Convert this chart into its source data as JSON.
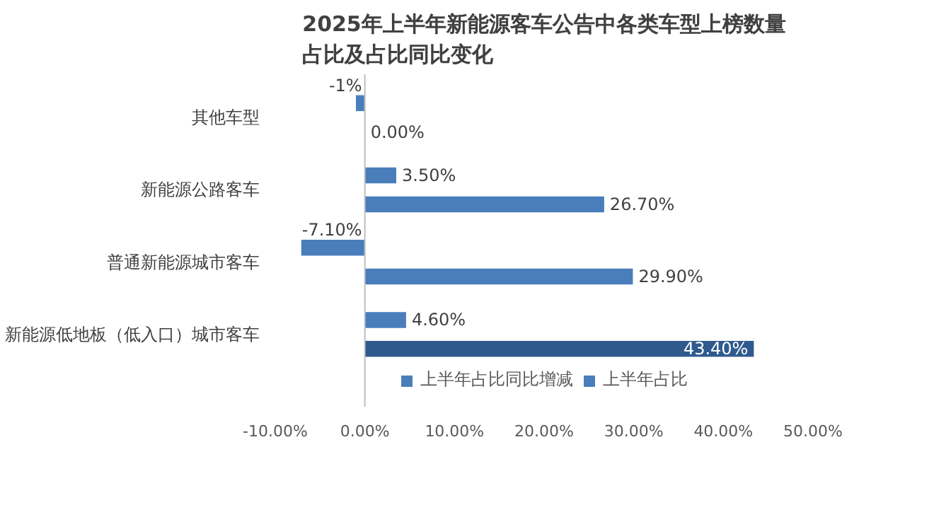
{
  "chart_data": {
    "type": "bar",
    "orientation": "horizontal",
    "title": "2025年上半年新能源客车公告中各类车型上榜数量占比及占比同比变化",
    "categories": [
      "其他车型",
      "新能源公路客车",
      "普通新能源城市客车",
      "新能源低地板（低入口）城市客车"
    ],
    "series": [
      {
        "name": "上半年占比同比增减",
        "color": "#4a7ebb",
        "values": [
          -1,
          3.5,
          -7.1,
          4.6
        ],
        "value_labels": [
          "-1%",
          "3.50%",
          "-7.10%",
          "4.60%"
        ]
      },
      {
        "name": "上半年占比",
        "colors": [
          "#4a7ebb",
          "#4a7ebb",
          "#4a7ebb",
          "#2f5a8e"
        ],
        "values": [
          0,
          26.7,
          29.9,
          43.4
        ],
        "value_labels": [
          "0.00%",
          "26.70%",
          "29.90%",
          "43.40%"
        ]
      }
    ],
    "xlim": [
      -10,
      50
    ],
    "xticks": [
      {
        "value": -10,
        "label": "-10.00%"
      },
      {
        "value": 0,
        "label": "0.00%"
      },
      {
        "value": 10,
        "label": "10.00%"
      },
      {
        "value": 20,
        "label": "20.00%"
      },
      {
        "value": 30,
        "label": "30.00%"
      },
      {
        "value": 40,
        "label": "40.00%"
      },
      {
        "value": 50,
        "label": "50.00%"
      }
    ],
    "legend": "bottom"
  }
}
